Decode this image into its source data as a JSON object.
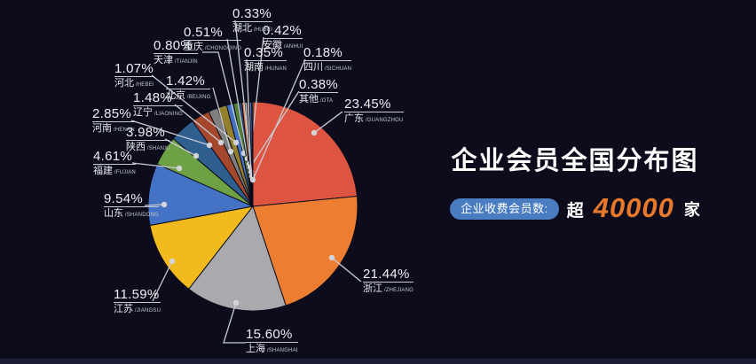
{
  "header": {
    "title": "企业会员全国分布图"
  },
  "stat": {
    "badge_label": "企业收费会员数:",
    "prefix": "超",
    "number": "40000",
    "suffix": "家",
    "number_color": "#E8792A",
    "badge_bg": "#4A7CC2"
  },
  "chart_data": {
    "type": "pie",
    "title": "企业会员全国分布图",
    "unit": "percent",
    "legend_position": "none",
    "start_angle": "top",
    "direction": "clockwise",
    "items": [
      {
        "name": "广东",
        "pinyin": "GUANGZHOU",
        "value": 23.45,
        "label": "23.45%",
        "color": "#DD5440"
      },
      {
        "name": "浙江",
        "pinyin": "ZHEJIANG",
        "value": 21.44,
        "label": "21.44%",
        "color": "#ED7D31"
      },
      {
        "name": "上海",
        "pinyin": "SHANGHAI",
        "value": 15.6,
        "label": "15.60%",
        "color": "#A9A9AE"
      },
      {
        "name": "江苏",
        "pinyin": "JIANGSU",
        "value": 11.59,
        "label": "11.59%",
        "color": "#F2BA1D"
      },
      {
        "name": "山东",
        "pinyin": "SHANDONG",
        "value": 9.54,
        "label": "9.54%",
        "color": "#4472C4"
      },
      {
        "name": "福建",
        "pinyin": "FUJIAN",
        "value": 4.61,
        "label": "4.61%",
        "color": "#6DA143"
      },
      {
        "name": "陕西",
        "pinyin": "SHANXI",
        "value": 3.98,
        "label": "3.98%",
        "color": "#2E5F8F"
      },
      {
        "name": "河南",
        "pinyin": "HENAN",
        "value": 2.85,
        "label": "2.85%",
        "color": "#A5472C"
      },
      {
        "name": "辽宁",
        "pinyin": "LIAONING",
        "value": 1.48,
        "label": "1.48%",
        "color": "#7F7F7F"
      },
      {
        "name": "北京",
        "pinyin": "BEIJING",
        "value": 1.42,
        "label": "1.42%",
        "color": "#94802B"
      },
      {
        "name": "河北",
        "pinyin": "HEBEI",
        "value": 1.07,
        "label": "1.07%",
        "color": "#4472C4"
      },
      {
        "name": "天津",
        "pinyin": "TIANJIN",
        "value": 0.8,
        "label": "0.80%",
        "color": "#548235"
      },
      {
        "name": "重庆",
        "pinyin": "CHONGQING",
        "value": 0.51,
        "label": "0.51%",
        "color": "#264478"
      },
      {
        "name": "安徽",
        "pinyin": "ANHUI",
        "value": 0.42,
        "label": "0.42%",
        "color": "#ED7D31"
      },
      {
        "name": "其他",
        "pinyin": "OTA",
        "value": 0.38,
        "label": "0.38%",
        "color": "#BFBFBF"
      },
      {
        "name": "湖南",
        "pinyin": "HUNAN",
        "value": 0.35,
        "label": "0.35%",
        "color": "#F2BA1D"
      },
      {
        "name": "湖北",
        "pinyin": "HUBEI",
        "value": 0.33,
        "label": "0.33%",
        "color": "#4472C4"
      },
      {
        "name": "四川",
        "pinyin": "SICHUAN",
        "value": 0.18,
        "label": "0.18%",
        "color": "#6DA143"
      }
    ]
  }
}
